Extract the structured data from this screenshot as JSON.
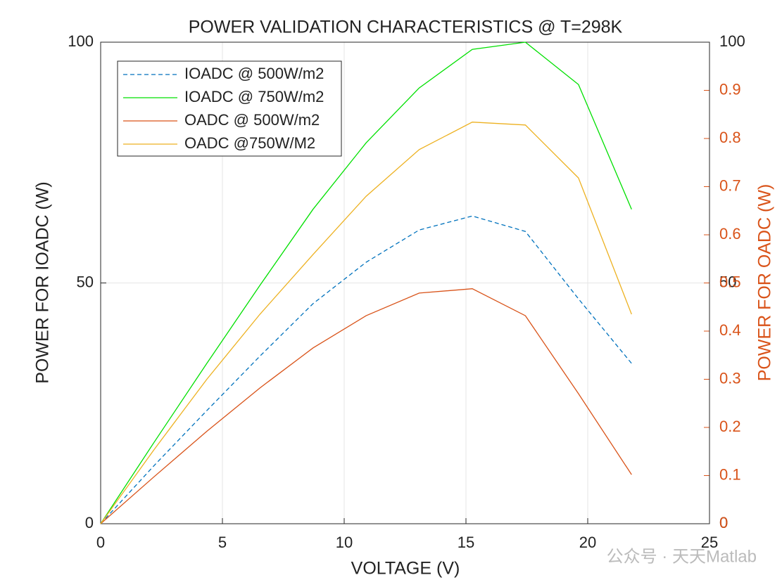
{
  "chart_data": {
    "type": "line",
    "title": "POWER VALIDATION CHARACTERISTICS @ T=298K",
    "xlabel": "VOLTAGE (V)",
    "ylabel": "POWER FOR IOADC (W)",
    "y2label": "POWER FOR OADC (W)",
    "x": [
      0,
      2.18,
      4.36,
      6.54,
      8.72,
      10.9,
      13.08,
      15.26,
      17.44,
      19.62,
      21.8
    ],
    "series": [
      {
        "name": "IOADC @ 500W/m2",
        "color": "#0072BD",
        "dashed": true,
        "values": [
          0,
          12,
          23.5,
          34.8,
          45.7,
          54.3,
          61,
          63.9,
          60.7,
          46.7,
          33.3
        ]
      },
      {
        "name": "IOADC @ 750W/m2",
        "color": "#00E000",
        "values": [
          0,
          16.8,
          33.3,
          49.5,
          65.3,
          79.1,
          90.5,
          98.5,
          100,
          91.2,
          65.3
        ]
      },
      {
        "name": "OADC @ 500W/m2",
        "color": "#D95319",
        "axis": "y2",
        "values": [
          0,
          0.097,
          0.192,
          0.282,
          0.365,
          0.432,
          0.479,
          0.488,
          0.432,
          0.27,
          0.102
        ]
      },
      {
        "name": "OADC @750W/M2",
        "color": "#EDB120",
        "axis": "y2",
        "values": [
          0,
          0.153,
          0.3,
          0.435,
          0.559,
          0.68,
          0.777,
          0.834,
          0.828,
          0.718,
          0.435
        ]
      }
    ],
    "xlim": [
      0,
      25
    ],
    "xticks": [
      0,
      5,
      10,
      15,
      20,
      25
    ],
    "ylim": [
      0,
      100
    ],
    "yticks": [
      0,
      50,
      100
    ],
    "y2lim": [
      0,
      1
    ],
    "y2ticks": [
      0,
      0.1,
      0.2,
      0.3,
      0.4,
      0.5,
      0.6,
      0.7,
      0.8,
      0.9
    ],
    "y2color": "#D95319",
    "grid": true,
    "legend": "upper left",
    "watermark": "公众号 · 天天Matlab"
  }
}
